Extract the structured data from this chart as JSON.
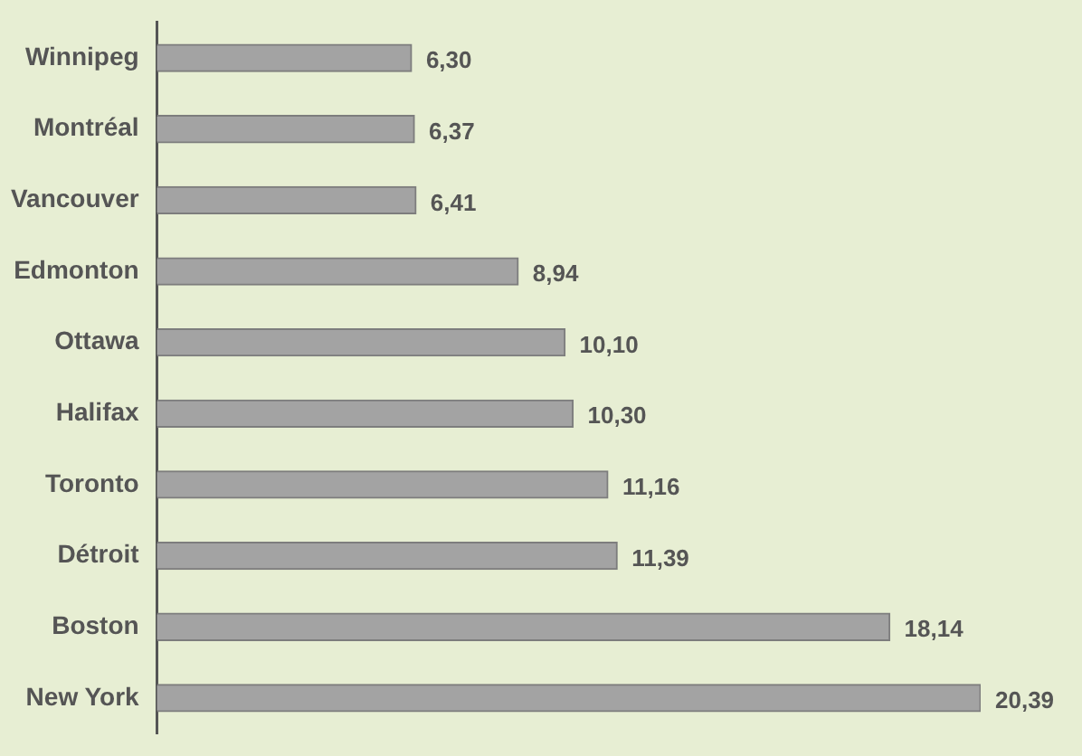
{
  "chart_data": {
    "type": "bar",
    "orientation": "horizontal",
    "categories": [
      "Winnipeg",
      "Montréal",
      "Vancouver",
      "Edmonton",
      "Ottawa",
      "Halifax",
      "Toronto",
      "Détroit",
      "Boston",
      "New York"
    ],
    "values": [
      6.3,
      6.37,
      6.41,
      8.94,
      10.1,
      10.3,
      11.16,
      11.39,
      18.14,
      20.39
    ],
    "value_labels": [
      "6,30",
      "6,37",
      "6,41",
      "8,94",
      "10,10",
      "10,30",
      "11,16",
      "11,39",
      "18,14",
      "20,39"
    ],
    "color": "#a3a3a3",
    "legend": false
  }
}
